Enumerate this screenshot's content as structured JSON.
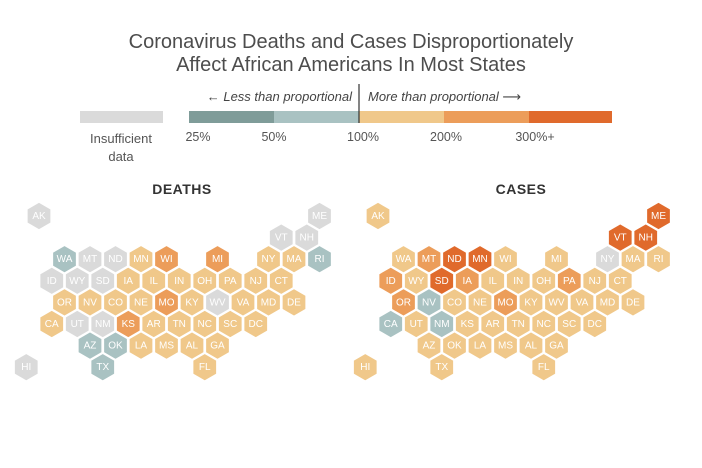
{
  "title_lines": [
    "Coronavirus Deaths and Cases Disproportionately",
    "Affect African Americans In Most States"
  ],
  "legend": {
    "insufficient_label_line1": "Insufficient",
    "insufficient_label_line2": "data",
    "less_label": "← Less than proportional",
    "more_label": "More than proportional ⟶",
    "ticks": [
      "25%",
      "50%",
      "100%",
      "200%",
      "300%+"
    ],
    "bins": [
      {
        "id": "b1",
        "color": "#7f9c99"
      },
      {
        "id": "b2",
        "color": "#a9c2c2"
      },
      {
        "id": "b3",
        "color": "#f0c88a"
      },
      {
        "id": "b4",
        "color": "#ec9d5a"
      },
      {
        "id": "b5",
        "color": "#e06a2c"
      }
    ],
    "insufficient_color": "#dadada"
  },
  "colors": {
    "g": "#dadada",
    "b1": "#7f9c99",
    "b2": "#a9c2c2",
    "b3": "#f0c88a",
    "b4": "#ec9d5a",
    "b5": "#e06a2c"
  },
  "panels": [
    {
      "id": "deaths",
      "title": "DEATHS",
      "states": {
        "AK": "g",
        "ME": "g",
        "VT": "g",
        "NH": "g",
        "WA": "b2",
        "MT": "g",
        "ND": "g",
        "MN": "b3",
        "WI": "b4",
        "MI": "b4",
        "NY": "b3",
        "MA": "b3",
        "RI": "b2",
        "ID": "g",
        "WY": "g",
        "SD": "g",
        "IA": "b3",
        "IL": "b3",
        "IN": "b3",
        "OH": "b3",
        "PA": "b3",
        "NJ": "b3",
        "CT": "b3",
        "OR": "b3",
        "NV": "b3",
        "CO": "b3",
        "NE": "b3",
        "MO": "b4",
        "KY": "b3",
        "WV": "g",
        "VA": "b3",
        "MD": "b3",
        "DE": "b3",
        "CA": "b3",
        "UT": "g",
        "NM": "g",
        "KS": "b4",
        "AR": "b3",
        "TN": "b3",
        "NC": "b3",
        "SC": "b3",
        "DC": "b3",
        "AZ": "b2",
        "OK": "b2",
        "LA": "b3",
        "MS": "b3",
        "AL": "b3",
        "GA": "b3",
        "HI": "g",
        "TX": "b2",
        "FL": "b3"
      }
    },
    {
      "id": "cases",
      "title": "CASES",
      "states": {
        "AK": "b3",
        "ME": "b5",
        "VT": "b5",
        "NH": "b5",
        "WA": "b3",
        "MT": "b4",
        "ND": "b5",
        "MN": "b5",
        "WI": "b3",
        "MI": "b3",
        "NY": "g",
        "MA": "b3",
        "RI": "b3",
        "ID": "b4",
        "WY": "b3",
        "SD": "b5",
        "IA": "b4",
        "IL": "b3",
        "IN": "b3",
        "OH": "b3",
        "PA": "b4",
        "NJ": "b3",
        "CT": "b3",
        "OR": "b4",
        "NV": "b2",
        "CO": "b3",
        "NE": "b3",
        "MO": "b4",
        "KY": "b3",
        "WV": "b3",
        "VA": "b3",
        "MD": "b3",
        "DE": "b3",
        "CA": "b2",
        "UT": "b3",
        "NM": "b2",
        "KS": "b3",
        "AR": "b3",
        "TN": "b3",
        "NC": "b3",
        "SC": "b3",
        "DC": "b3",
        "AZ": "b3",
        "OK": "b3",
        "LA": "b3",
        "MS": "b3",
        "AL": "b3",
        "GA": "b3",
        "HI": "b3",
        "TX": "b3",
        "FL": "b3"
      }
    }
  ]
}
